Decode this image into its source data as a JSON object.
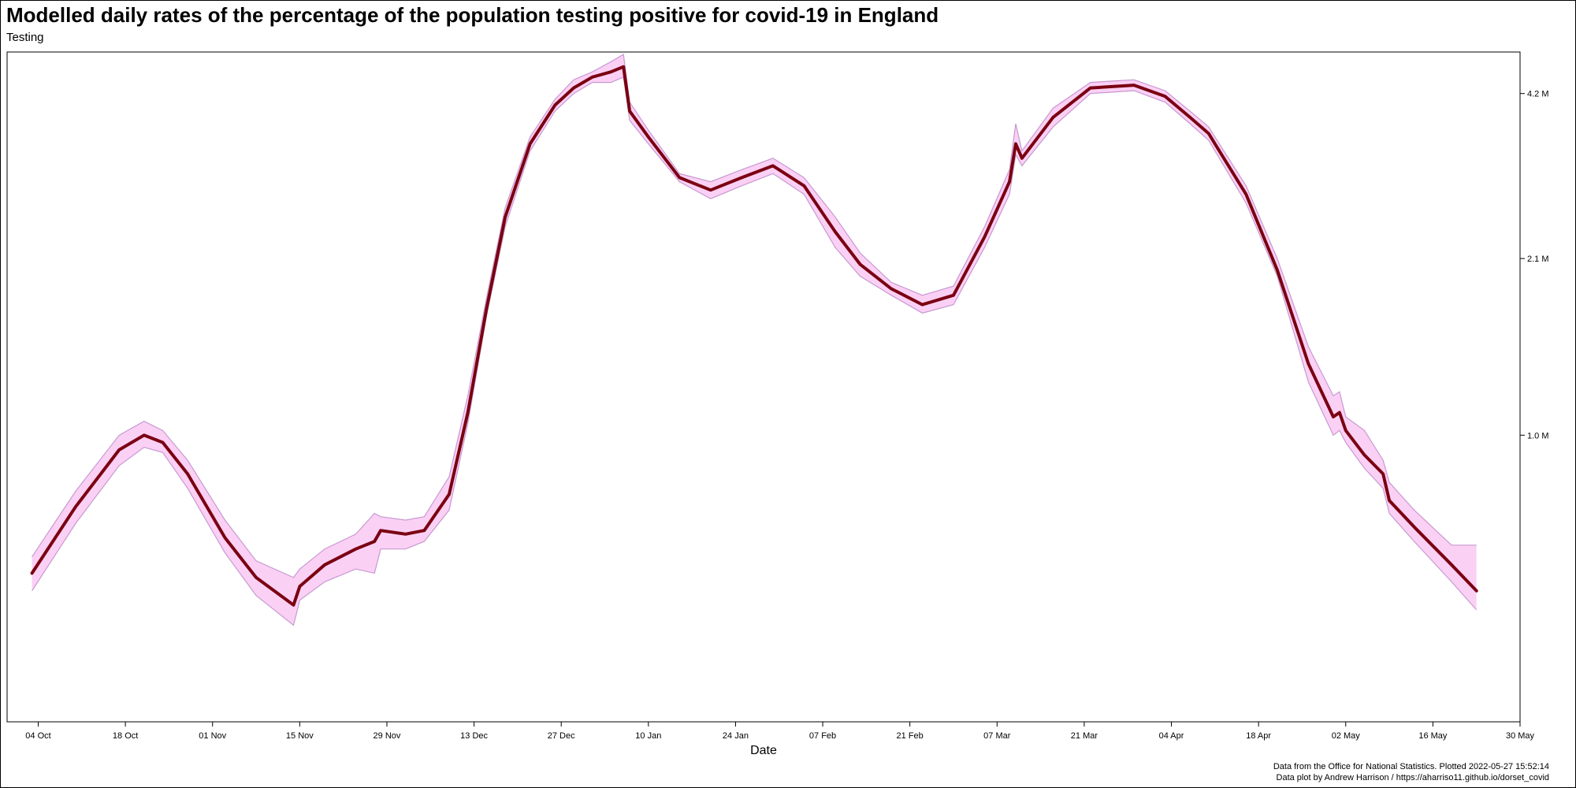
{
  "page": {
    "title": "Modelled daily rates of the percentage of the population testing positive for covid-19 in England",
    "subtitle": "Testing",
    "caption_line1": "Data from the Office for National Statistics. Plotted 2022-05-27 15:52:14",
    "caption_line2": "Data plot by Andrew Harrison / https://aharriso11.github.io/dorset_covid"
  },
  "chart_data": {
    "type": "line",
    "title": "Modelled daily rates of the percentage of the population testing positive for covid-19 in England",
    "subtitle": "Testing",
    "xlabel": "Date",
    "ylabel": "",
    "y_scale": "log",
    "y_axis_position": "right",
    "xlim": [
      "2021-09-29",
      "2022-05-30"
    ],
    "ylim": [
      0.3,
      5.0
    ],
    "grid": false,
    "x_ticks": [
      {
        "date": "2021-10-04",
        "label": "04 Oct"
      },
      {
        "date": "2021-10-18",
        "label": "18 Oct"
      },
      {
        "date": "2021-11-01",
        "label": "01 Nov"
      },
      {
        "date": "2021-11-15",
        "label": "15 Nov"
      },
      {
        "date": "2021-11-29",
        "label": "29 Nov"
      },
      {
        "date": "2021-12-13",
        "label": "13 Dec"
      },
      {
        "date": "2021-12-27",
        "label": "27 Dec"
      },
      {
        "date": "2022-01-10",
        "label": "10 Jan"
      },
      {
        "date": "2022-01-24",
        "label": "24 Jan"
      },
      {
        "date": "2022-02-07",
        "label": "07 Feb"
      },
      {
        "date": "2022-02-21",
        "label": "21 Feb"
      },
      {
        "date": "2022-03-07",
        "label": "07 Mar"
      },
      {
        "date": "2022-03-21",
        "label": "21 Mar"
      },
      {
        "date": "2022-04-04",
        "label": "04 Apr"
      },
      {
        "date": "2022-04-18",
        "label": "18 Apr"
      },
      {
        "date": "2022-05-02",
        "label": "02 May"
      },
      {
        "date": "2022-05-16",
        "label": "16 May"
      },
      {
        "date": "2022-05-30",
        "label": "30 May"
      }
    ],
    "y_ticks": [
      {
        "value": 1.0,
        "label": "1.0 M"
      },
      {
        "value": 2.1,
        "label": "2.1 M"
      },
      {
        "value": 4.2,
        "label": "4.2 M"
      }
    ],
    "colors": {
      "line": "#7a0011",
      "band_fill": "#fbd0f5",
      "band_edge": "#c79ad0"
    },
    "series": [
      {
        "x": [
          "2021-10-03",
          "2021-10-10",
          "2021-10-17",
          "2021-10-21",
          "2021-10-24",
          "2021-10-28",
          "2021-11-03",
          "2021-11-08",
          "2021-11-14",
          "2021-11-15",
          "2021-11-19",
          "2021-11-24",
          "2021-11-27",
          "2021-11-28",
          "2021-12-02",
          "2021-12-05",
          "2021-12-09",
          "2021-12-12",
          "2021-12-15",
          "2021-12-18",
          "2021-12-22",
          "2021-12-26",
          "2021-12-29",
          "2022-01-01",
          "2022-01-04",
          "2022-01-06",
          "2022-01-07",
          "2022-01-10",
          "2022-01-15",
          "2022-01-20",
          "2022-01-25",
          "2022-01-30",
          "2022-02-04",
          "2022-02-09",
          "2022-02-13",
          "2022-02-18",
          "2022-02-23",
          "2022-02-28",
          "2022-03-05",
          "2022-03-09",
          "2022-03-10",
          "2022-03-11",
          "2022-03-16",
          "2022-03-22",
          "2022-03-29",
          "2022-04-03",
          "2022-04-07",
          "2022-04-10",
          "2022-04-11",
          "2022-04-16",
          "2022-04-21",
          "2022-04-26",
          "2022-04-30",
          "2022-05-01",
          "2022-05-02",
          "2022-05-05",
          "2022-05-08",
          "2022-05-09",
          "2022-05-13",
          "2022-05-19",
          "2022-05-23"
        ],
        "values": [
          0.56,
          0.74,
          0.94,
          1.0,
          0.97,
          0.85,
          0.65,
          0.55,
          0.49,
          0.53,
          0.58,
          0.62,
          0.64,
          0.67,
          0.66,
          0.67,
          0.78,
          1.1,
          1.7,
          2.5,
          3.4,
          4.0,
          4.3,
          4.5,
          4.6,
          4.7,
          3.9,
          3.5,
          2.95,
          2.8,
          2.95,
          3.1,
          2.85,
          2.35,
          2.05,
          1.85,
          1.73,
          1.8,
          2.3,
          2.9,
          3.4,
          3.2,
          3.8,
          4.3,
          4.35,
          4.15,
          3.8,
          3.55,
          3.4,
          2.75,
          2.0,
          1.35,
          1.08,
          1.1,
          1.02,
          0.92,
          0.85,
          0.76,
          0.68,
          0.58,
          0.52
        ]
      }
    ],
    "band": {
      "x": [
        "2021-10-03",
        "2021-10-10",
        "2021-10-17",
        "2021-10-21",
        "2021-10-24",
        "2021-10-28",
        "2021-11-03",
        "2021-11-08",
        "2021-11-14",
        "2021-11-15",
        "2021-11-19",
        "2021-11-24",
        "2021-11-27",
        "2021-11-28",
        "2021-12-02",
        "2021-12-05",
        "2021-12-09",
        "2021-12-12",
        "2021-12-15",
        "2021-12-18",
        "2021-12-22",
        "2021-12-26",
        "2021-12-29",
        "2022-01-01",
        "2022-01-04",
        "2022-01-06",
        "2022-01-07",
        "2022-01-10",
        "2022-01-15",
        "2022-01-20",
        "2022-01-25",
        "2022-01-30",
        "2022-02-04",
        "2022-02-09",
        "2022-02-13",
        "2022-02-18",
        "2022-02-23",
        "2022-02-28",
        "2022-03-05",
        "2022-03-09",
        "2022-03-10",
        "2022-03-11",
        "2022-03-16",
        "2022-03-22",
        "2022-03-29",
        "2022-04-03",
        "2022-04-07",
        "2022-04-10",
        "2022-04-11",
        "2022-04-16",
        "2022-04-21",
        "2022-04-26",
        "2022-04-30",
        "2022-05-01",
        "2022-05-02",
        "2022-05-05",
        "2022-05-08",
        "2022-05-09",
        "2022-05-13",
        "2022-05-19",
        "2022-05-23"
      ],
      "lower": [
        0.52,
        0.69,
        0.88,
        0.95,
        0.93,
        0.8,
        0.61,
        0.51,
        0.45,
        0.5,
        0.54,
        0.57,
        0.56,
        0.62,
        0.62,
        0.64,
        0.73,
        1.05,
        1.65,
        2.4,
        3.3,
        3.9,
        4.2,
        4.4,
        4.4,
        4.5,
        3.75,
        3.4,
        2.9,
        2.7,
        2.85,
        3.0,
        2.75,
        2.2,
        1.95,
        1.8,
        1.67,
        1.73,
        2.2,
        2.75,
        3.25,
        3.1,
        3.65,
        4.2,
        4.25,
        4.05,
        3.7,
        3.45,
        3.3,
        2.65,
        1.95,
        1.25,
        1.0,
        1.02,
        0.97,
        0.87,
        0.8,
        0.72,
        0.64,
        0.54,
        0.48
      ],
      "upper": [
        0.6,
        0.79,
        1.0,
        1.06,
        1.02,
        0.9,
        0.7,
        0.59,
        0.55,
        0.57,
        0.62,
        0.66,
        0.72,
        0.71,
        0.7,
        0.71,
        0.84,
        1.18,
        1.78,
        2.6,
        3.5,
        4.1,
        4.45,
        4.6,
        4.8,
        4.95,
        4.05,
        3.6,
        3.0,
        2.9,
        3.05,
        3.2,
        2.95,
        2.5,
        2.15,
        1.9,
        1.8,
        1.87,
        2.4,
        3.05,
        3.7,
        3.3,
        3.95,
        4.4,
        4.45,
        4.25,
        3.9,
        3.65,
        3.5,
        2.85,
        2.1,
        1.45,
        1.18,
        1.2,
        1.08,
        1.02,
        0.9,
        0.82,
        0.73,
        0.63,
        0.63
      ]
    }
  }
}
